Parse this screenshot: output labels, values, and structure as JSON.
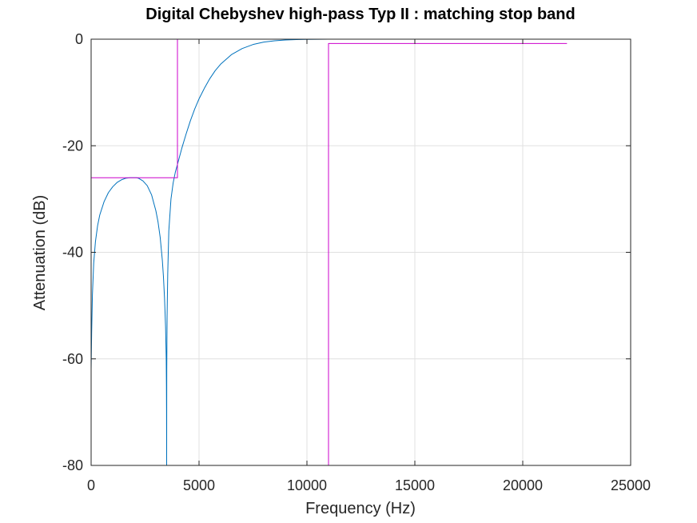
{
  "chart_data": {
    "type": "line",
    "title": "Digital Chebyshev high-pass Typ II : matching stop band",
    "xlabel": "Frequency (Hz)",
    "ylabel": "Attenuation (dB)",
    "xlim": [
      0,
      25000
    ],
    "ylim": [
      -80,
      0
    ],
    "xticks": [
      0,
      5000,
      10000,
      15000,
      20000,
      25000
    ],
    "yticks": [
      -80,
      -60,
      -40,
      -20,
      0
    ],
    "xtick_labels": [
      "0",
      "5000",
      "10000",
      "15000",
      "20000",
      "25000"
    ],
    "ytick_labels": [
      "-80",
      "-60",
      "-40",
      "-20",
      "0"
    ],
    "grid": true,
    "legend": false,
    "colors": {
      "response": "#0072bd",
      "mask": "#cc00cc",
      "grid": "#e0e0e0",
      "axis": "#262626"
    },
    "series": [
      {
        "role": "filter_response",
        "color": "#0072bd",
        "x": [
          0,
          0,
          25,
          60,
          120,
          200,
          300,
          400,
          600,
          800,
          1000,
          1200,
          1400,
          1600,
          1800,
          2000,
          2100,
          2200,
          2400,
          2600,
          2800,
          3000,
          3100,
          3200,
          3300,
          3350,
          3400,
          3450,
          3480,
          3490,
          3495,
          3500,
          3505,
          3520,
          3550,
          3600,
          3700,
          3800,
          3900,
          4000,
          4200,
          4400,
          4600,
          4800,
          5000,
          5250,
          5500,
          5750,
          6000,
          6500,
          7000,
          7500,
          8000,
          8500,
          9000,
          9500,
          10000,
          10500,
          11000
        ],
        "y": [
          -80,
          -62,
          -55,
          -48,
          -42,
          -38,
          -35,
          -33,
          -30.5,
          -28.8,
          -27.7,
          -26.9,
          -26.4,
          -26.1,
          -26.0,
          -26.0,
          -26.0,
          -26.1,
          -26.6,
          -27.5,
          -29.2,
          -32.2,
          -34.3,
          -37.2,
          -41.5,
          -44.5,
          -48.5,
          -54,
          -60,
          -65,
          -70,
          -80,
          -62,
          -52,
          -44,
          -36,
          -30,
          -27,
          -25,
          -23.5,
          -20.5,
          -17.8,
          -15.3,
          -13.1,
          -11.2,
          -9.2,
          -7.4,
          -5.9,
          -4.7,
          -2.9,
          -1.75,
          -1.0,
          -0.55,
          -0.3,
          -0.15,
          -0.07,
          -0.03,
          -0.01,
          0
        ]
      },
      {
        "role": "stopband_mask",
        "color": "#cc00cc",
        "x": [
          0,
          4000,
          4000,
          22050
        ],
        "y": [
          -26,
          -26,
          0,
          0
        ]
      },
      {
        "role": "passband_mask",
        "color": "#cc00cc",
        "x": [
          11000,
          11000,
          22050
        ],
        "y": [
          -80,
          -0.8,
          -0.8
        ]
      }
    ]
  }
}
